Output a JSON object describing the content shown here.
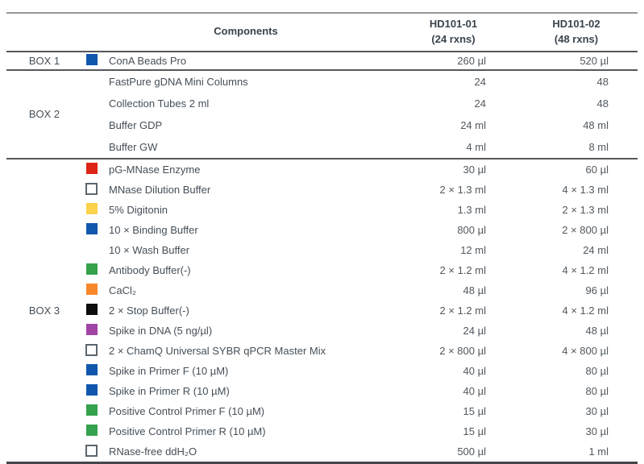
{
  "table": {
    "header": {
      "components": "Components",
      "col1_line1": "HD101-01",
      "col1_line2": "(24 rxns)",
      "col2_line1": "HD101-02",
      "col2_line2": "(48 rxns)"
    },
    "swatch_colors": {
      "blue": "#1157ad",
      "red": "#de2317",
      "yellow": "#fbd24b",
      "green": "#35a24d",
      "orange": "#f8872c",
      "black": "#0c0c0c",
      "purple": "#a044a5",
      "white": "#ffffff"
    },
    "sections": [
      {
        "box": "BOX 1",
        "rows": [
          {
            "swatch": "blue",
            "name": "ConA Beads Pro",
            "v1": "260 µl",
            "v2": "520 µl"
          }
        ]
      },
      {
        "box": "BOX 2",
        "rows": [
          {
            "swatch": null,
            "name": "FastPure gDNA Mini Columns",
            "v1": "24",
            "v2": "48"
          },
          {
            "swatch": null,
            "name": "Collection Tubes 2 ml",
            "v1": "24",
            "v2": "48"
          },
          {
            "swatch": null,
            "name": "Buffer GDP",
            "v1": "24 ml",
            "v2": "48 ml"
          },
          {
            "swatch": null,
            "name": "Buffer GW",
            "v1": "4 ml",
            "v2": "8 ml"
          }
        ]
      },
      {
        "box": "BOX 3",
        "rows": [
          {
            "swatch": "red",
            "name": "pG-MNase Enzyme",
            "v1": "30 µl",
            "v2": "60 µl"
          },
          {
            "swatch": "white",
            "name": "MNase Dilution Buffer",
            "v1": "2 × 1.3 ml",
            "v2": "4 × 1.3 ml"
          },
          {
            "swatch": "yellow",
            "name": "5% Digitonin",
            "v1": "1.3 ml",
            "v2": "2 × 1.3 ml"
          },
          {
            "swatch": "blue",
            "name": "10 × Binding Buffer",
            "v1": "800 µl",
            "v2": "2 × 800 µl"
          },
          {
            "swatch": null,
            "name": "10 × Wash Buffer",
            "v1": "12 ml",
            "v2": "24 ml"
          },
          {
            "swatch": "green",
            "name": "Antibody Buffer(-)",
            "v1": "2 × 1.2 ml",
            "v2": "4 × 1.2 ml"
          },
          {
            "swatch": "orange",
            "name": "CaCl₂",
            "v1": "48 µl",
            "v2": "96 µl"
          },
          {
            "swatch": "black",
            "name": "2 × Stop Buffer(-)",
            "v1": "2 × 1.2 ml",
            "v2": "4 × 1.2 ml"
          },
          {
            "swatch": "purple",
            "name": "Spike in DNA (5 ng/µl)",
            "v1": "24 µl",
            "v2": "48 µl"
          },
          {
            "swatch": "white",
            "name": "2 × ChamQ Universal SYBR qPCR Master Mix",
            "v1": "2 × 800 µl",
            "v2": "4 × 800 µl"
          },
          {
            "swatch": "blue",
            "name": "Spike in Primer F (10 µM)",
            "v1": "40 µl",
            "v2": "80 µl"
          },
          {
            "swatch": "blue",
            "name": "Spike in Primer R (10 µM)",
            "v1": "40 µl",
            "v2": "80 µl"
          },
          {
            "swatch": "green",
            "name": "Positive Control Primer F (10 µM)",
            "v1": "15 µl",
            "v2": "30 µl"
          },
          {
            "swatch": "green",
            "name": "Positive Control Primer R (10 µM)",
            "v1": "15 µl",
            "v2": "30 µl"
          },
          {
            "swatch": "white",
            "name": "RNase-free ddH₂O",
            "v1": "500 µl",
            "v2": "1 ml"
          }
        ]
      }
    ]
  }
}
